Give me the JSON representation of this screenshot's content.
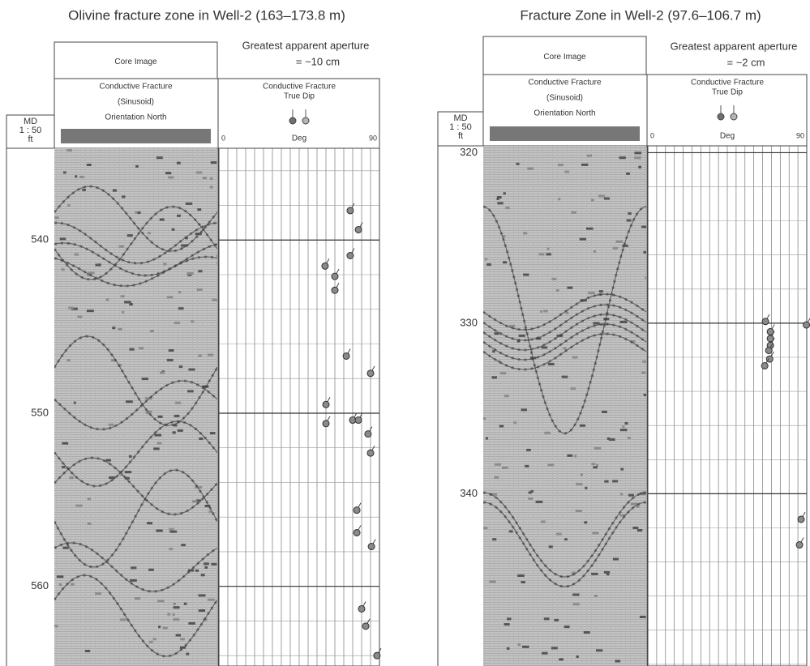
{
  "chart_data": [
    {
      "type": "scatter",
      "title": "Olivine fracture zone in Well-2 (163–173.8 m)",
      "aperture_note": [
        "Greatest apparent aperture",
        "= ~10 cm"
      ],
      "core_header": "Core Image",
      "fracture_header": [
        "Conductive Fracture",
        "(Sinusoid)",
        "Orientation North"
      ],
      "dip_header": [
        "Conductive Fracture",
        "True Dip"
      ],
      "depth_label": [
        "MD",
        "1 : 50",
        "ft"
      ],
      "xlabel": "Deg",
      "xlim": [
        0,
        90
      ],
      "xticks": [
        0,
        90
      ],
      "ylim": [
        534.7,
        564.6
      ],
      "yticks": [
        540,
        550,
        560
      ],
      "series": [
        {
          "color": "#8a8a8a",
          "x": [
            73.6,
            78.2,
            73.6,
            59.5,
            65,
            65,
            71.4,
            85,
            60,
            60,
            75,
            78.2,
            83.6,
            85,
            77.3,
            77.3,
            85.5,
            80,
            82.3,
            88.6
          ],
          "values": [
            538.3,
            539.4,
            540.9,
            541.5,
            542.1,
            542.9,
            546.7,
            547.7,
            549.5,
            550.6,
            550.4,
            550.4,
            551.2,
            552.3,
            555.6,
            556.9,
            557.7,
            561.3,
            562.3,
            564
          ]
        }
      ]
    },
    {
      "type": "scatter",
      "title": "Fracture Zone in Well-2 (97.6–106.7 m)",
      "aperture_note": [
        "Greatest apparent aperture",
        "= ~2 cm"
      ],
      "core_header": "Core Image",
      "fracture_header": [
        "Conductive Fracture",
        "(Sinusoid)",
        "Orientation North"
      ],
      "dip_header": [
        "Conductive Fracture",
        "True Dip"
      ],
      "depth_label": [
        "MD",
        "1 : 50",
        "ft"
      ],
      "xlabel": "Deg",
      "xlim": [
        0,
        90
      ],
      "xticks": [
        0,
        90
      ],
      "ylim": [
        319.6,
        350.1
      ],
      "yticks": [
        320,
        330,
        340
      ],
      "series": [
        {
          "color": "#8a8a8a",
          "x": [
            66.6,
            69.4,
            69.4,
            69.4,
            68.5,
            69,
            66.2,
            89.8,
            86.8,
            85.9
          ],
          "values": [
            329.9,
            330.5,
            330.9,
            331.3,
            331.6,
            332.1,
            332.5,
            330.1,
            341.5,
            343
          ]
        }
      ]
    }
  ]
}
